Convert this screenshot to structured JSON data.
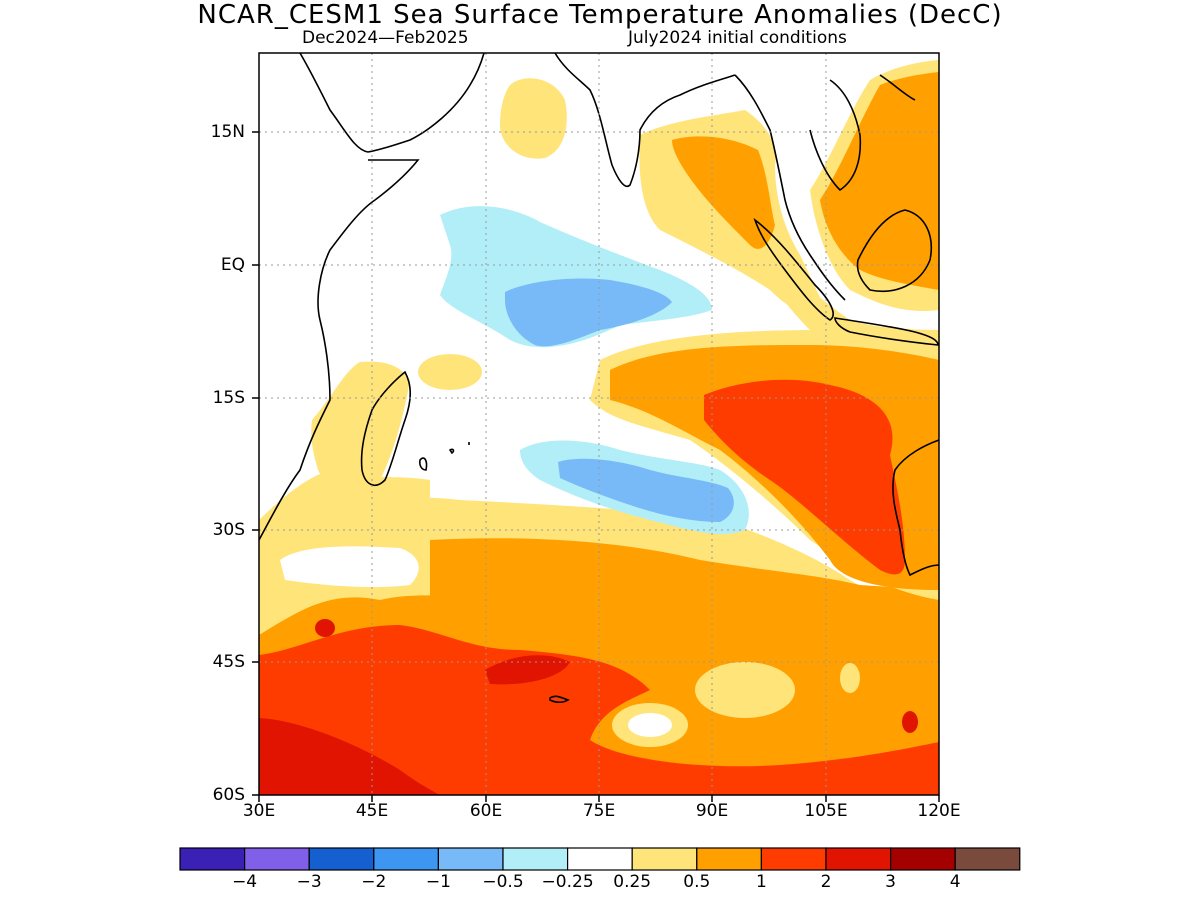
{
  "title": "NCAR_CESM1 Sea Surface Temperature Anomalies (DecC)",
  "subtitle_left": "Dec2024—Feb2025",
  "subtitle_right": "July2024 initial conditions",
  "map": {
    "lon_range": [
      30,
      120
    ],
    "lat_range": [
      -60,
      24
    ],
    "y_ticks": [
      "15N",
      "EQ",
      "15S",
      "30S",
      "45S",
      "60S"
    ],
    "x_ticks": [
      "30E",
      "45E",
      "60E",
      "75E",
      "90E",
      "105E",
      "120E"
    ],
    "features": {
      "cool_anomaly_regions": [
        "equatorial central Indian Ocean",
        "south-central Indian Ocean near 25S"
      ],
      "warm_anomaly_regions": [
        "eastern Indian Ocean off Australia",
        "Southern Ocean 40S-60S",
        "Bay of Bengal",
        "South China Sea"
      ]
    }
  },
  "colorbar": {
    "colors": [
      "#3a20b4",
      "#8060e8",
      "#1560d0",
      "#3c96f2",
      "#78b9f8",
      "#b2eef8",
      "#ffffff",
      "#ffe47a",
      "#ffa000",
      "#ff3c00",
      "#e01400",
      "#a50000",
      "#7a4a3c"
    ],
    "labels": [
      "−4",
      "−3",
      "−2",
      "−1",
      "−0.5",
      "−0.25",
      "0.25",
      "0.5",
      "1",
      "2",
      "3",
      "4"
    ]
  }
}
